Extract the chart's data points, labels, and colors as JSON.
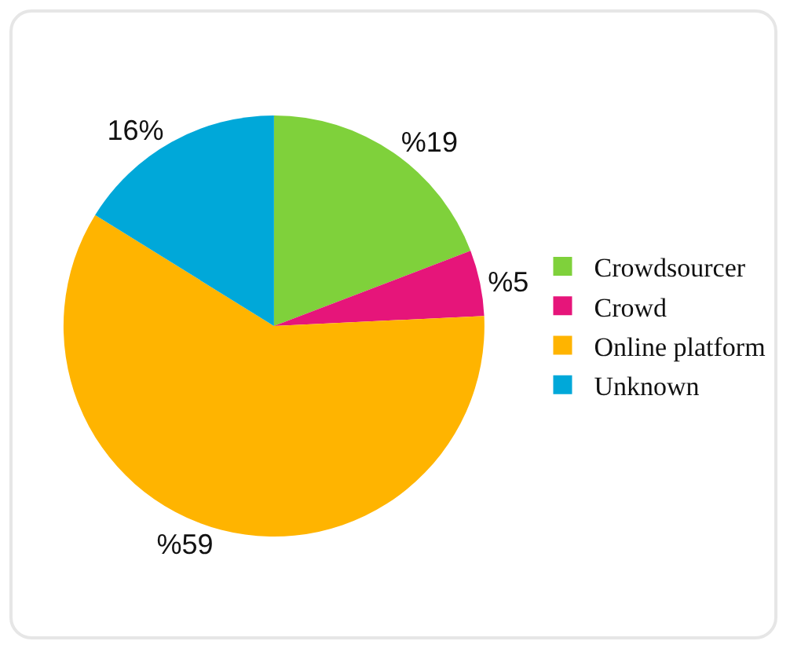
{
  "chart_data": {
    "type": "pie",
    "categories": [
      "Crowdsourcer",
      "Crowd",
      "Online platform",
      "Unknown"
    ],
    "values": [
      19,
      5,
      59,
      16
    ],
    "colors": [
      "#7fd13b",
      "#e6157a",
      "#ffb400",
      "#00a8d9"
    ],
    "value_labels": [
      "%19",
      "%5",
      "%59",
      "16%"
    ],
    "legend": "right"
  }
}
